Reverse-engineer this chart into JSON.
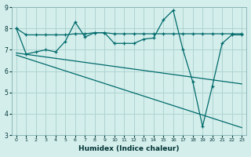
{
  "xlabel": "Humidex (Indice chaleur)",
  "bg_color": "#d4eeec",
  "grid_color": "#aed4d0",
  "line_color": "#006b6b",
  "xlim": [
    -0.5,
    23.5
  ],
  "ylim": [
    3,
    9
  ],
  "yticks": [
    3,
    4,
    5,
    6,
    7,
    8,
    9
  ],
  "xticks": [
    0,
    1,
    2,
    3,
    4,
    5,
    6,
    7,
    8,
    9,
    10,
    11,
    12,
    13,
    14,
    15,
    16,
    17,
    18,
    19,
    20,
    21,
    22,
    23
  ],
  "line1_x": [
    0,
    1,
    2,
    3,
    4,
    5,
    6,
    7,
    8,
    9,
    10,
    11,
    12,
    13,
    14,
    15,
    16,
    17,
    18,
    19,
    20,
    21,
    22,
    23
  ],
  "line1_y": [
    8.0,
    7.7,
    7.7,
    7.7,
    7.7,
    7.7,
    7.75,
    7.75,
    7.8,
    7.8,
    7.75,
    7.75,
    7.75,
    7.75,
    7.75,
    7.75,
    7.75,
    7.75,
    7.75,
    7.75,
    7.75,
    7.75,
    7.75,
    7.75
  ],
  "line2_x": [
    0,
    1,
    2,
    3,
    4,
    5,
    6,
    7,
    8,
    9,
    10,
    11,
    12,
    13,
    14,
    15,
    16,
    17,
    18,
    19,
    20,
    21,
    22,
    23
  ],
  "line2_y": [
    8.0,
    6.8,
    6.9,
    7.0,
    6.9,
    7.4,
    8.3,
    7.6,
    7.8,
    7.8,
    7.3,
    7.3,
    7.3,
    7.5,
    7.55,
    8.4,
    8.85,
    7.0,
    5.5,
    3.4,
    5.3,
    7.3,
    7.7,
    7.7
  ],
  "line3_x": [
    0,
    23
  ],
  "line3_y": [
    6.85,
    5.4
  ],
  "line4_x": [
    0,
    23
  ],
  "line4_y": [
    6.75,
    3.35
  ]
}
